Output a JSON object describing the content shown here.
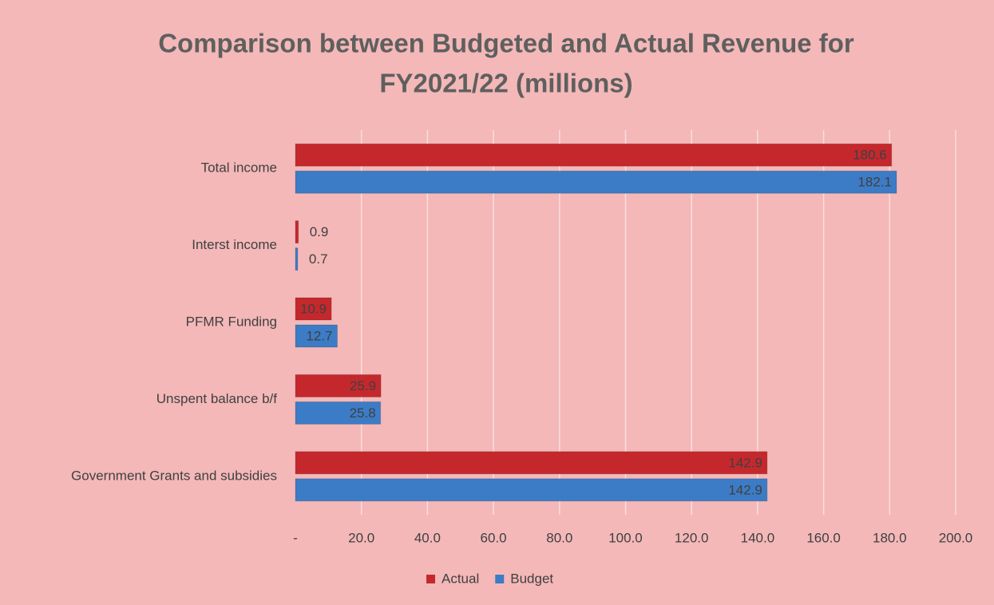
{
  "chart_data": {
    "type": "hbar",
    "title": "Comparison between Budgeted and Actual Revenue for FY2021/22 (millions)",
    "title_lines": [
      "Comparison between Budgeted and Actual Revenue for",
      "FY2021/22 (millions)"
    ],
    "categories": [
      "Total income",
      "Interst income",
      "PFMR Funding",
      "Unspent balance b/f",
      "Government Grants and subsidies"
    ],
    "series": [
      {
        "name": "Actual",
        "color": "#c4282d",
        "values": [
          180.6,
          0.9,
          10.9,
          25.9,
          142.9
        ]
      },
      {
        "name": "Budget",
        "color": "#3c7cc6",
        "values": [
          182.1,
          0.7,
          12.7,
          25.8,
          142.9
        ]
      }
    ],
    "xlim": [
      0,
      200
    ],
    "xticks": [
      {
        "value": 0,
        "label": "-"
      },
      {
        "value": 20,
        "label": "20.0"
      },
      {
        "value": 40,
        "label": "40.0"
      },
      {
        "value": 60,
        "label": "60.0"
      },
      {
        "value": 80,
        "label": "80.0"
      },
      {
        "value": 100,
        "label": "100.0"
      },
      {
        "value": 120,
        "label": "120.0"
      },
      {
        "value": 140,
        "label": "140.0"
      },
      {
        "value": 160,
        "label": "160.0"
      },
      {
        "value": 180,
        "label": "180.0"
      },
      {
        "value": 200,
        "label": "200.0"
      }
    ],
    "grid": true,
    "legend": "bottom"
  }
}
